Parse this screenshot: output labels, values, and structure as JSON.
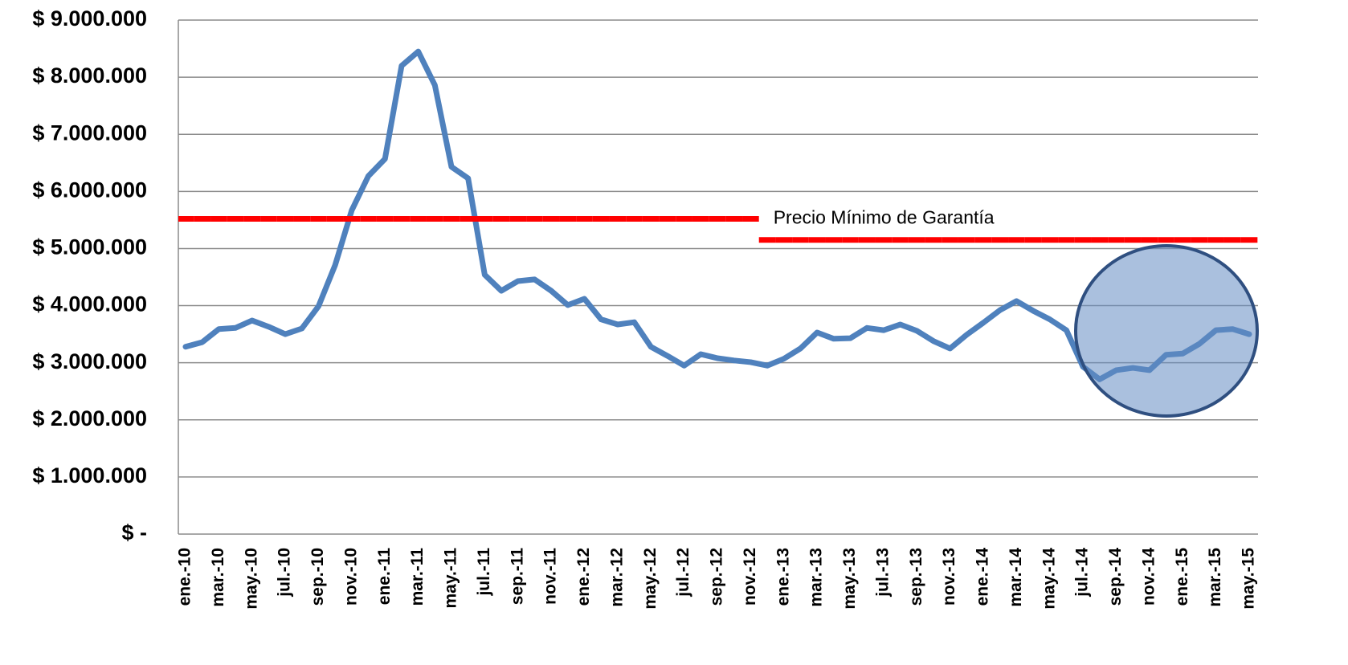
{
  "chart_data": {
    "type": "line",
    "categories": [
      "ene.-10",
      null,
      "mar.-10",
      null,
      "may.-10",
      null,
      "jul.-10",
      null,
      "sep.-10",
      null,
      "nov.-10",
      null,
      "ene.-11",
      null,
      "mar.-11",
      null,
      "may.-11",
      null,
      "jul.-11",
      null,
      "sep.-11",
      null,
      "nov.-11",
      null,
      "ene.-12",
      null,
      "mar.-12",
      null,
      "may.-12",
      null,
      "jul.-12",
      null,
      "sep.-12",
      null,
      "nov.-12",
      null,
      "ene.-13",
      null,
      "mar.-13",
      null,
      "may.-13",
      null,
      "jul.-13",
      null,
      "sep.-13",
      null,
      "nov.-13",
      null,
      "ene.-14",
      null,
      "mar.-14",
      null,
      "may.-14",
      null,
      "jul.-14",
      null,
      "sep.-14",
      null,
      "nov.-14",
      null,
      "ene.-15",
      null,
      "mar.-15",
      null,
      "may.-15"
    ],
    "series": [
      {
        "color": "#4f81bd",
        "style": "line",
        "values": [
          3280000,
          3360000,
          3590000,
          3610000,
          3740000,
          3630000,
          3500000,
          3600000,
          3990000,
          4710000,
          5670000,
          6270000,
          6570000,
          8200000,
          8450000,
          7860000,
          6430000,
          6230000,
          4540000,
          4260000,
          4430000,
          4460000,
          4260000,
          4010000,
          4120000,
          3760000,
          3670000,
          3710000,
          3280000,
          3120000,
          2950000,
          3150000,
          3080000,
          3040000,
          3010000,
          2950000,
          3070000,
          3250000,
          3530000,
          3420000,
          3430000,
          3610000,
          3570000,
          3670000,
          3560000,
          3380000,
          3250000,
          3490000,
          3700000,
          3920000,
          4080000,
          3910000,
          3760000,
          3570000,
          2930000,
          2710000,
          2870000,
          2910000,
          2870000,
          3140000,
          3160000,
          3330000,
          3570000,
          3590000,
          3500000
        ]
      },
      {
        "name": "Precio Mínimo de Garantía",
        "color": "#ff0000",
        "style": "step",
        "values": [
          5520000,
          5520000,
          5520000,
          5520000,
          5520000,
          5520000,
          5520000,
          5520000,
          5520000,
          5520000,
          5520000,
          5520000,
          5520000,
          5520000,
          5520000,
          5520000,
          5520000,
          5520000,
          5520000,
          5520000,
          5520000,
          5520000,
          5520000,
          5520000,
          5520000,
          5520000,
          5520000,
          5520000,
          5520000,
          5520000,
          5520000,
          5520000,
          5520000,
          5520000,
          5520000,
          5150000,
          5150000,
          5150000,
          5150000,
          5150000,
          5150000,
          5150000,
          5150000,
          5150000,
          5150000,
          5150000,
          5150000,
          5150000,
          5150000,
          5150000,
          5150000,
          5150000,
          5150000,
          5150000,
          5150000,
          5150000,
          5150000,
          5150000,
          5150000,
          5150000,
          5150000,
          5150000,
          5150000,
          5150000,
          5150000
        ]
      }
    ],
    "ylim": [
      0,
      9000000
    ],
    "yticks": [
      {
        "value": 0,
        "label": "$ -"
      },
      {
        "value": 1000000,
        "label": "$ 1.000.000"
      },
      {
        "value": 2000000,
        "label": "$ 2.000.000"
      },
      {
        "value": 3000000,
        "label": "$ 3.000.000"
      },
      {
        "value": 4000000,
        "label": "$ 4.000.000"
      },
      {
        "value": 5000000,
        "label": "$ 5.000.000"
      },
      {
        "value": 6000000,
        "label": "$ 6.000.000"
      },
      {
        "value": 7000000,
        "label": "$ 7.000.000"
      },
      {
        "value": 8000000,
        "label": "$ 8.000.000"
      },
      {
        "value": 9000000,
        "label": "$ 9.000.000"
      }
    ],
    "grid": true
  }
}
